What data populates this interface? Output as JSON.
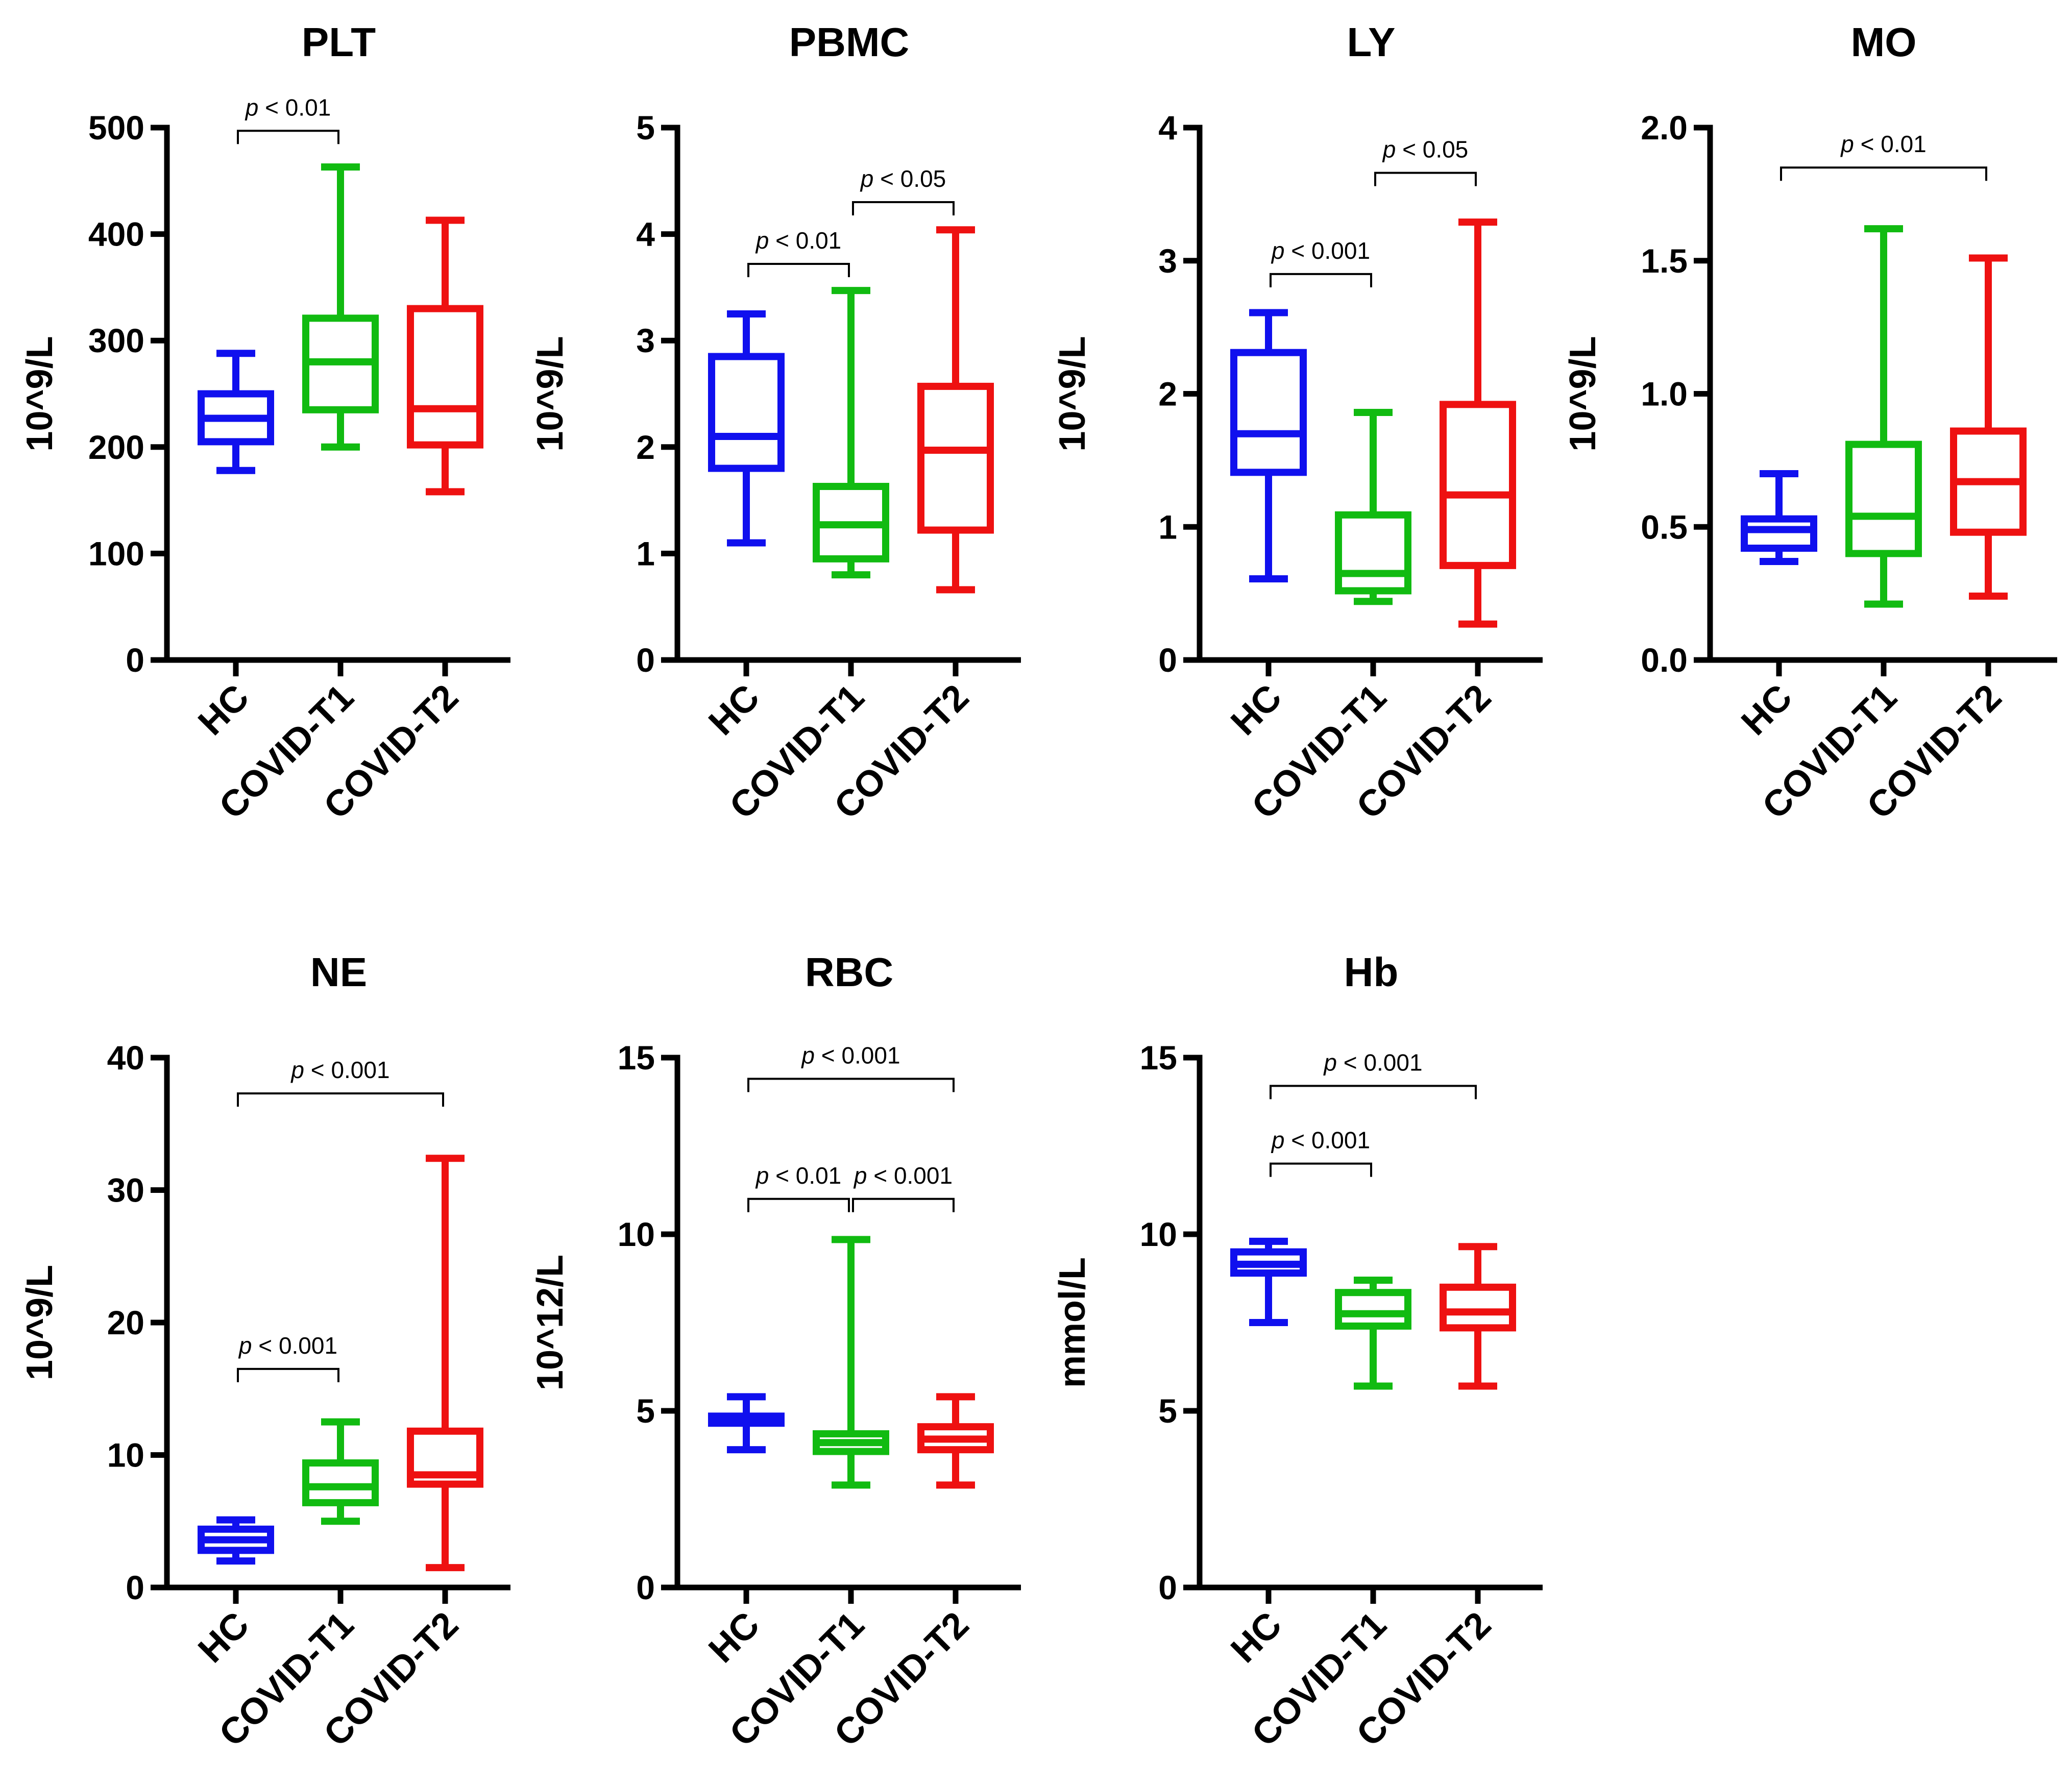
{
  "colors": {
    "HC": "#1010ee",
    "COVID-T1": "#11bb11",
    "COVID-T2": "#ee1111",
    "axis": "#000000"
  },
  "chart_data": [
    {
      "type": "box",
      "title": "PLT",
      "ylabel": "10^9/L",
      "ylim": [
        0,
        500
      ],
      "yticks": [
        "0",
        "100",
        "200",
        "300",
        "400",
        "500"
      ],
      "categories": [
        "HC",
        "COVID-T1",
        "COVID-T2"
      ],
      "series": [
        {
          "name": "HC",
          "min": 178,
          "q1": 205,
          "median": 227,
          "q3": 250,
          "max": 288
        },
        {
          "name": "COVID-T1",
          "min": 200,
          "q1": 235,
          "median": 280,
          "q3": 321,
          "max": 463
        },
        {
          "name": "COVID-T2",
          "min": 158,
          "q1": 202,
          "median": 236,
          "q3": 330,
          "max": 413
        }
      ],
      "comparisons": [
        {
          "from": "HC",
          "to": "COVID-T1",
          "y": 497,
          "label_p": "p",
          "label_rest": " < 0.01"
        }
      ]
    },
    {
      "type": "box",
      "title": "PBMC",
      "ylabel": "10^9/L",
      "ylim": [
        0,
        5
      ],
      "yticks": [
        "0",
        "1",
        "2",
        "3",
        "4",
        "5"
      ],
      "categories": [
        "HC",
        "COVID-T1",
        "COVID-T2"
      ],
      "series": [
        {
          "name": "HC",
          "min": 1.1,
          "q1": 1.8,
          "median": 2.1,
          "q3": 2.85,
          "max": 3.25
        },
        {
          "name": "COVID-T1",
          "min": 0.8,
          "q1": 0.95,
          "median": 1.27,
          "q3": 1.63,
          "max": 3.47
        },
        {
          "name": "COVID-T2",
          "min": 0.66,
          "q1": 1.22,
          "median": 1.97,
          "q3": 2.57,
          "max": 4.04
        }
      ],
      "comparisons": [
        {
          "from": "HC",
          "to": "COVID-T1",
          "y": 3.72,
          "label_p": "p",
          "label_rest": " < 0.01"
        },
        {
          "from": "COVID-T1",
          "to": "COVID-T2",
          "y": 4.3,
          "label_p": "p",
          "label_rest": " < 0.05"
        }
      ]
    },
    {
      "type": "box",
      "title": "LY",
      "ylabel": "10^9/L",
      "ylim": [
        0,
        4
      ],
      "yticks": [
        "0",
        "1",
        "2",
        "3",
        "4"
      ],
      "categories": [
        "HC",
        "COVID-T1",
        "COVID-T2"
      ],
      "series": [
        {
          "name": "HC",
          "min": 0.61,
          "q1": 1.41,
          "median": 1.7,
          "q3": 2.31,
          "max": 2.61
        },
        {
          "name": "COVID-T1",
          "min": 0.44,
          "q1": 0.52,
          "median": 0.65,
          "q3": 1.09,
          "max": 1.86
        },
        {
          "name": "COVID-T2",
          "min": 0.27,
          "q1": 0.71,
          "median": 1.24,
          "q3": 1.92,
          "max": 3.29
        }
      ],
      "comparisons": [
        {
          "from": "HC",
          "to": "COVID-T1",
          "y": 2.9,
          "label_p": "p",
          "label_rest": " < 0.001"
        },
        {
          "from": "COVID-T1",
          "to": "COVID-T2",
          "y": 3.66,
          "label_p": "p",
          "label_rest": " < 0.05"
        }
      ]
    },
    {
      "type": "box",
      "title": "MO",
      "ylabel": "10^9/L",
      "ylim": [
        0,
        2
      ],
      "yticks": [
        "0.0",
        "0.5",
        "1.0",
        "1.5",
        "2.0"
      ],
      "categories": [
        "HC",
        "COVID-T1",
        "COVID-T2"
      ],
      "series": [
        {
          "name": "HC",
          "min": 0.37,
          "q1": 0.42,
          "median": 0.49,
          "q3": 0.53,
          "max": 0.7
        },
        {
          "name": "COVID-T1",
          "min": 0.21,
          "q1": 0.4,
          "median": 0.54,
          "q3": 0.81,
          "max": 1.62
        },
        {
          "name": "COVID-T2",
          "min": 0.24,
          "q1": 0.48,
          "median": 0.67,
          "q3": 0.86,
          "max": 1.51
        }
      ],
      "comparisons": [
        {
          "from": "HC",
          "to": "COVID-T2",
          "y": 1.85,
          "label_p": "p",
          "label_rest": " < 0.01"
        }
      ]
    },
    {
      "type": "box",
      "title": "NE",
      "ylabel": "10^9/L",
      "ylim": [
        0,
        40
      ],
      "yticks": [
        "0",
        "10",
        "20",
        "30",
        "40"
      ],
      "categories": [
        "HC",
        "COVID-T1",
        "COVID-T2"
      ],
      "series": [
        {
          "name": "HC",
          "min": 2.0,
          "q1": 2.8,
          "median": 3.6,
          "q3": 4.4,
          "max": 5.1
        },
        {
          "name": "COVID-T1",
          "min": 5.0,
          "q1": 6.4,
          "median": 7.6,
          "q3": 9.4,
          "max": 12.5
        },
        {
          "name": "COVID-T2",
          "min": 1.5,
          "q1": 7.8,
          "median": 8.5,
          "q3": 11.8,
          "max": 32.4
        }
      ],
      "comparisons": [
        {
          "from": "HC",
          "to": "COVID-T1",
          "y": 16.5,
          "label_p": "p",
          "label_rest": " < 0.001"
        },
        {
          "from": "HC",
          "to": "COVID-T2",
          "y": 37.3,
          "label_p": "p",
          "label_rest": " < 0.001"
        }
      ]
    },
    {
      "type": "box",
      "title": "RBC",
      "ylabel": "10^12/L",
      "ylim": [
        0,
        15
      ],
      "yticks": [
        "0",
        "5",
        "10",
        "15"
      ],
      "categories": [
        "HC",
        "COVID-T1",
        "COVID-T2"
      ],
      "series": [
        {
          "name": "HC",
          "min": 3.9,
          "q1": 4.65,
          "median": 4.75,
          "q3": 4.85,
          "max": 5.4
        },
        {
          "name": "COVID-T1",
          "min": 2.9,
          "q1": 3.85,
          "median": 4.1,
          "q3": 4.35,
          "max": 9.85
        },
        {
          "name": "COVID-T2",
          "min": 2.9,
          "q1": 3.9,
          "median": 4.2,
          "q3": 4.55,
          "max": 5.4
        }
      ],
      "comparisons": [
        {
          "from": "HC",
          "to": "COVID-T1",
          "y": 11.0,
          "label_p": "p",
          "label_rest": " < 0.01"
        },
        {
          "from": "COVID-T1",
          "to": "COVID-T2",
          "y": 11.0,
          "label_p": "p",
          "label_rest": " < 0.001"
        },
        {
          "from": "HC",
          "to": "COVID-T2",
          "y": 14.4,
          "label_p": "p",
          "label_rest": " < 0.001"
        }
      ]
    },
    {
      "type": "box",
      "title": "Hb",
      "ylabel": "mmol/L",
      "ylim": [
        0,
        15
      ],
      "yticks": [
        "0",
        "5",
        "10",
        "15"
      ],
      "categories": [
        "HC",
        "COVID-T1",
        "COVID-T2"
      ],
      "series": [
        {
          "name": "HC",
          "min": 7.5,
          "q1": 8.9,
          "median": 9.15,
          "q3": 9.5,
          "max": 9.8
        },
        {
          "name": "COVID-T1",
          "min": 5.7,
          "q1": 7.4,
          "median": 7.75,
          "q3": 8.35,
          "max": 8.7
        },
        {
          "name": "COVID-T2",
          "min": 5.7,
          "q1": 7.35,
          "median": 7.8,
          "q3": 8.5,
          "max": 9.65
        }
      ],
      "comparisons": [
        {
          "from": "HC",
          "to": "COVID-T1",
          "y": 12.0,
          "label_p": "p",
          "label_rest": " < 0.001"
        },
        {
          "from": "HC",
          "to": "COVID-T2",
          "y": 14.2,
          "label_p": "p",
          "label_rest": " < 0.001"
        }
      ]
    }
  ]
}
